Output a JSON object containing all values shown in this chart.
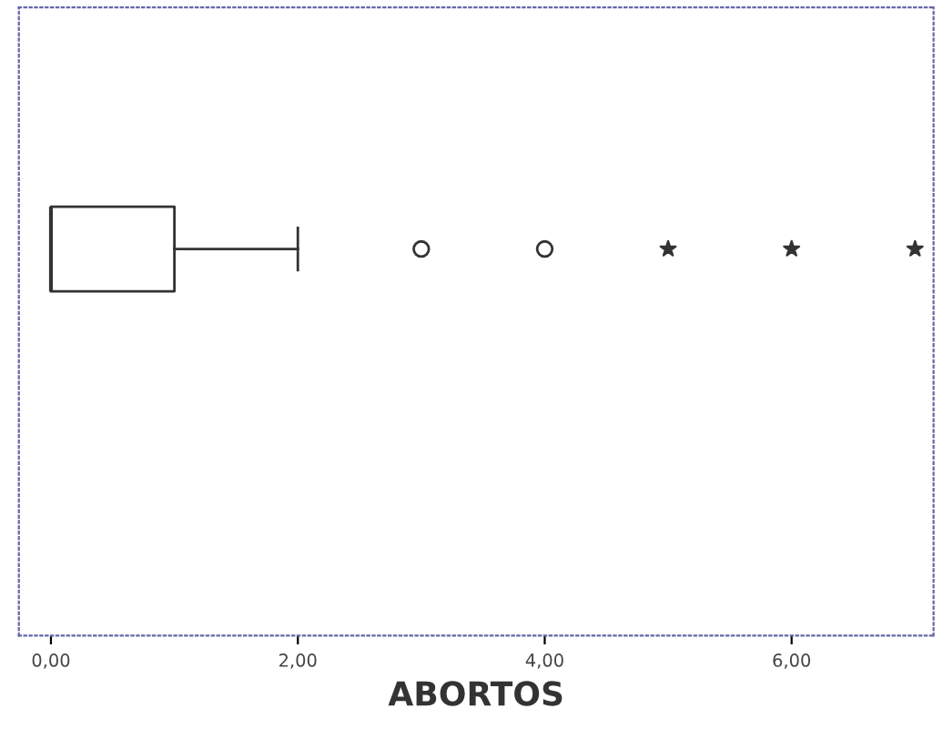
{
  "chart_data": {
    "type": "box",
    "orientation": "horizontal",
    "xlabel": "ABORTOS",
    "categories": [
      null
    ],
    "boxes": [
      {
        "low": 0,
        "q1": 0,
        "median": 0,
        "q3": 1,
        "high": 2,
        "outliers": [
          3,
          4
        ]
      }
    ],
    "series": [
      {
        "type": "scatter",
        "marker": "star",
        "x": [
          null,
          null,
          null
        ],
        "values": [
          5,
          6,
          7
        ]
      }
    ],
    "xlim": [
      -0.26,
      7.15
    ],
    "xticks": [
      {
        "value": 0,
        "label": "0,00"
      },
      {
        "value": 2,
        "label": "2,00"
      },
      {
        "value": 4,
        "label": "4,00"
      },
      {
        "value": 6,
        "label": "6,00"
      }
    ],
    "tick_labels": "x",
    "grid": false,
    "legend": false
  }
}
